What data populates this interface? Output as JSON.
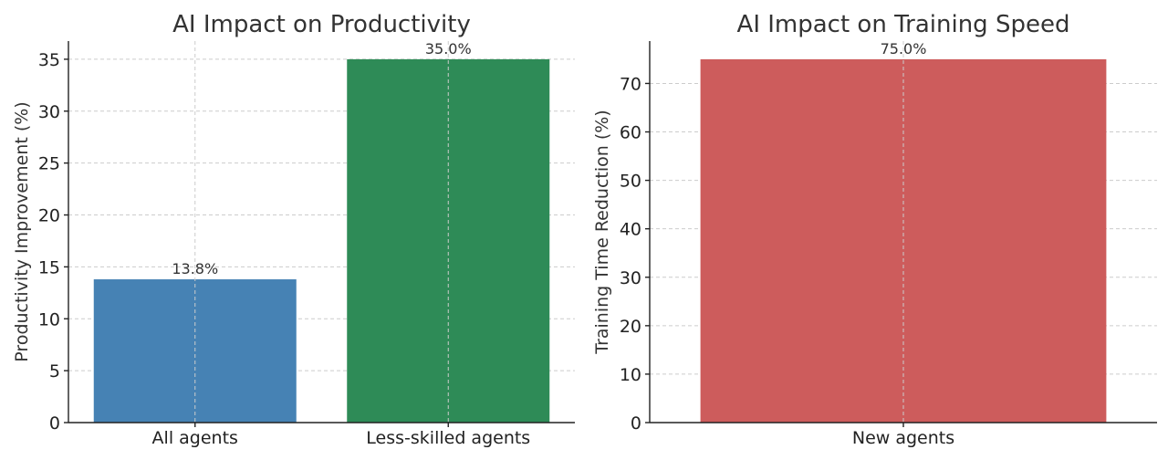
{
  "chart_data": [
    {
      "type": "bar",
      "title": "AI Impact on Productivity",
      "xlabel": "",
      "ylabel": "Productivity Improvement (%)",
      "categories": [
        "All agents",
        "Less-skilled agents"
      ],
      "values": [
        13.8,
        35.0
      ],
      "data_labels": [
        "13.8%",
        "35.0%"
      ],
      "colors": [
        "#4682b4",
        "#2e8b57"
      ],
      "ylim": [
        0,
        36.75
      ],
      "yticks": [
        0,
        5,
        10,
        15,
        20,
        25,
        30,
        35
      ],
      "grid": true
    },
    {
      "type": "bar",
      "title": "AI Impact on Training Speed",
      "xlabel": "",
      "ylabel": "Training Time Reduction (%)",
      "categories": [
        "New agents"
      ],
      "values": [
        75.0
      ],
      "data_labels": [
        "75.0%"
      ],
      "colors": [
        "#cd5c5c"
      ],
      "ylim": [
        0,
        78.75
      ],
      "yticks": [
        0,
        10,
        20,
        30,
        40,
        50,
        60,
        70
      ],
      "grid": true
    }
  ]
}
